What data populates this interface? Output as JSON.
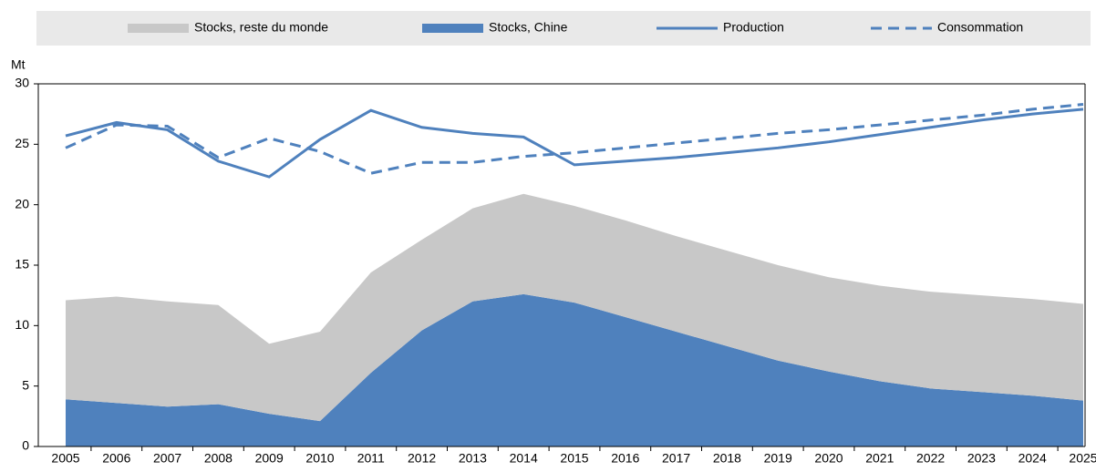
{
  "chart_data": {
    "type": "area",
    "y_label": "Mt",
    "categories": [
      "2005",
      "2006",
      "2007",
      "2008",
      "2009",
      "2010",
      "2011",
      "2012",
      "2013",
      "2014",
      "2015",
      "2016",
      "2017",
      "2018",
      "2019",
      "2020",
      "2021",
      "2022",
      "2023",
      "2024",
      "2025"
    ],
    "series": [
      {
        "name": "Stocks, reste du monde",
        "type": "area",
        "color": "#c8c8c8",
        "values": [
          8.2,
          8.8,
          8.7,
          8.2,
          5.8,
          7.4,
          8.3,
          7.5,
          7.7,
          8.3,
          8.0,
          8.0,
          7.9,
          7.9,
          7.9,
          7.8,
          7.9,
          8.0,
          8.0,
          8.0,
          8.0
        ]
      },
      {
        "name": "Stocks, Chine",
        "type": "area",
        "color": "#4f81bd",
        "values": [
          3.9,
          3.6,
          3.3,
          3.5,
          2.7,
          2.1,
          6.1,
          9.6,
          12.0,
          12.6,
          11.9,
          10.7,
          9.5,
          8.3,
          7.1,
          6.2,
          5.4,
          4.8,
          4.5,
          4.2,
          3.8
        ]
      },
      {
        "name": "Production",
        "type": "line",
        "color": "#4f81bd",
        "dashed": false,
        "values": [
          25.7,
          26.8,
          26.2,
          23.6,
          22.3,
          25.4,
          27.8,
          26.4,
          25.9,
          25.6,
          23.3,
          23.6,
          23.9,
          24.3,
          24.7,
          25.2,
          25.8,
          26.4,
          27.0,
          27.5,
          27.9
        ]
      },
      {
        "name": "Consommation",
        "type": "line",
        "color": "#4f81bd",
        "dashed": true,
        "values": [
          24.7,
          26.6,
          26.5,
          23.9,
          25.5,
          24.4,
          22.6,
          23.5,
          23.5,
          24.0,
          24.3,
          24.7,
          25.1,
          25.5,
          25.9,
          26.2,
          26.6,
          27.0,
          27.4,
          27.9,
          28.3
        ]
      }
    ],
    "stacked": true,
    "ylim": [
      0,
      30
    ],
    "yticks": [
      0,
      5,
      10,
      15,
      20,
      25,
      30
    ],
    "legend": "top"
  }
}
